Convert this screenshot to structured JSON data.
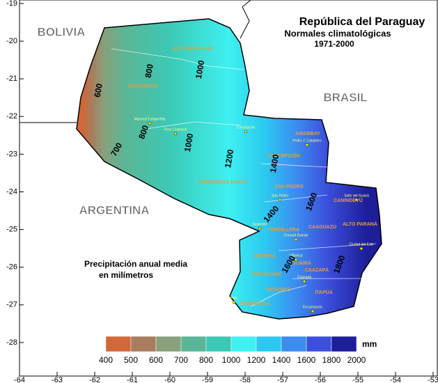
{
  "title": [
    "República del Paraguay",
    "Normales climatológicas",
    "1971-2000"
  ],
  "countries": [
    "BOLIVIA",
    "BRASIL",
    "ARGENTINA"
  ],
  "caption": [
    "Precipitación anual media",
    "en milímetros"
  ],
  "departments": [
    "ALTO PARAGUAY",
    "BOQUERÓN",
    "PRESIDENTE HAYES",
    "CONCEPCIÓN",
    "AMAMBAY",
    "SAN PEDRO",
    "CANINDEYÚ",
    "CORDILLERA",
    "CAAGUAZÚ",
    "ALTO PARANÁ",
    "CENTRAL",
    "PARAGUARÍ",
    "GUAIRÁ",
    "CAAZAPÁ",
    "MISIONES",
    "ÑEEMBUCÚ",
    "ITAPÚA"
  ],
  "cities": [
    "Mariscal Estigarribia",
    "Pozo Colorado",
    "Concepción",
    "Pedro J. Caballero",
    "San Pedro",
    "Asunción",
    "Villarrica",
    "Caazapá",
    "Encarnación",
    "Pilar",
    "Ciudad del Este",
    "Salto del Guairá",
    "Coronel Oviedo"
  ],
  "isolines": [
    600,
    700,
    800,
    800,
    1000,
    1000,
    1200,
    1400,
    1400,
    1600,
    1600,
    1800
  ],
  "legend": {
    "unit": "mm",
    "bounds": [
      400,
      500,
      600,
      700,
      800,
      1000,
      1200,
      1400,
      1600,
      1800,
      2000
    ],
    "colors": [
      "#d0683a",
      "#a87c5c",
      "#88a07c",
      "#5ab696",
      "#3cc8b4",
      "#3ef0f0",
      "#2cc8f0",
      "#3c8cf0",
      "#3c50dc",
      "#1e1e9a"
    ]
  },
  "axes": {
    "lat": [
      -19,
      -20,
      -21,
      -22,
      -23,
      -24,
      -25,
      -26,
      -27,
      -28
    ],
    "lon": [
      -64,
      -63,
      -62,
      -61,
      -60,
      -59,
      -58,
      -57,
      -56,
      -55,
      -54,
      -53
    ]
  }
}
